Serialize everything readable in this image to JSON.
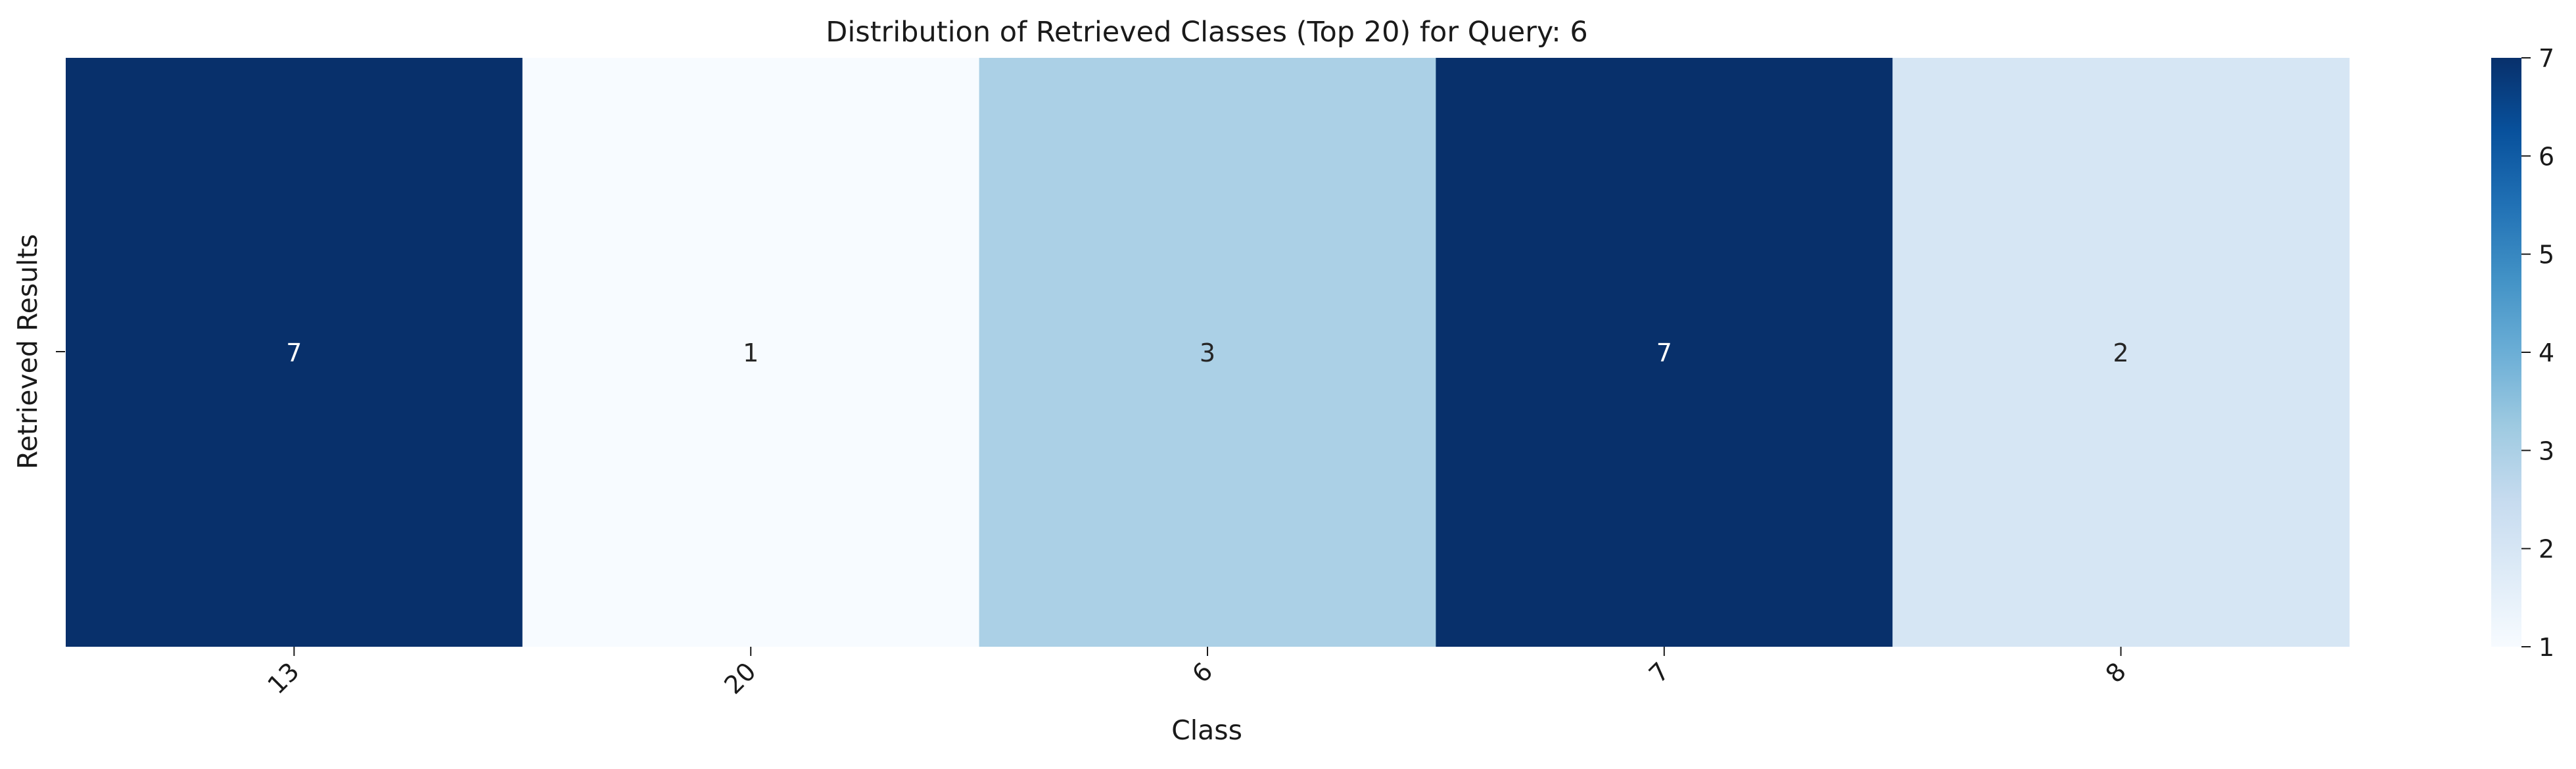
{
  "chart_data": {
    "type": "heatmap",
    "title": "Distribution of Retrieved Classes (Top 20) for Query: 6",
    "xlabel": "Class",
    "ylabel": "Retrieved Results",
    "categories": [
      "13",
      "20",
      "6",
      "7",
      "8"
    ],
    "values": [
      7,
      1,
      3,
      7,
      2
    ],
    "colorbar": {
      "min": 1,
      "max": 7,
      "ticks": [
        1,
        2,
        3,
        4,
        5,
        6,
        7
      ],
      "colormap": "Blues",
      "low_color": "#f7fbff",
      "high_color": "#08306b"
    },
    "annotations": true,
    "grid": false,
    "legend": "colorbar-right"
  }
}
